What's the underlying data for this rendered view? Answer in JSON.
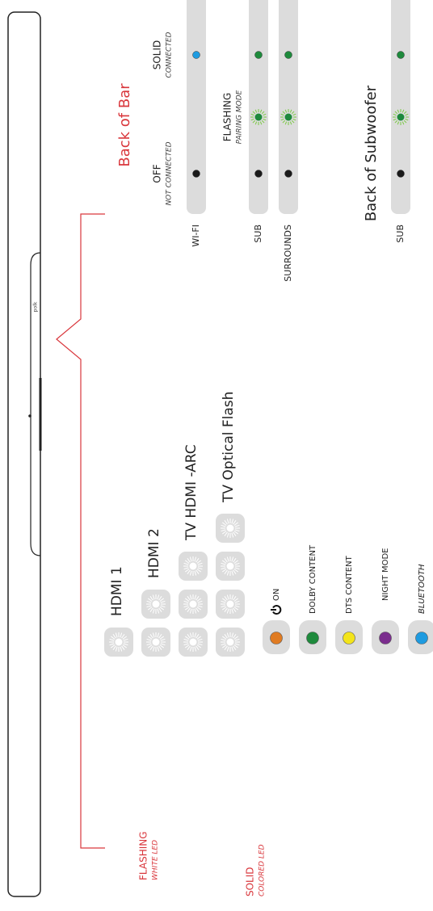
{
  "soundbar": {
    "logo": "polk"
  },
  "flashing_white": {
    "title": "FLASHING",
    "subtitle": "WHITE LED",
    "rows": [
      "HDMI 1",
      "HDMI 2",
      "TV HDMI -ARC",
      "TV Optical Flash"
    ]
  },
  "solid_colored": {
    "title": "SOLID",
    "subtitle": "COLORED LED",
    "rows": [
      {
        "label": "ON",
        "color": "#e07b22"
      },
      {
        "label": "DOLBY CONTENT",
        "color": "#1e8a3c"
      },
      {
        "label": "DTS CONTENT",
        "color": "#f3e41b"
      },
      {
        "label": "NIGHT MODE",
        "color": "#7b2d8e"
      },
      {
        "label": "BLUETOOTH",
        "color": "#1e9be0"
      }
    ]
  },
  "back_of_bar": {
    "title": "Back of Bar",
    "states": [
      {
        "title": "OFF",
        "subtitle": "NOT CONNECTED"
      },
      {
        "title": "FLASHING",
        "subtitle": "PAIRING MODE"
      },
      {
        "title": "SOLID",
        "subtitle": "CONNECTED"
      }
    ],
    "rows": [
      {
        "label": "WI-FI",
        "leds": [
          "#1a1a1a",
          null,
          "#1e9be0"
        ]
      },
      {
        "label": "SUB",
        "leds": [
          "#1a1a1a",
          "#7ac943",
          "#1e8a3c"
        ]
      },
      {
        "label": "SURROUNDS",
        "leds": [
          "#1a1a1a",
          "#7ac943",
          "#1e8a3c"
        ]
      }
    ]
  },
  "back_of_subwoofer": {
    "title": "Back of Subwoofer",
    "rows": [
      {
        "label": "SUB",
        "leds": [
          "#1a1a1a",
          "#7ac943",
          "#1e8a3c"
        ]
      }
    ]
  }
}
